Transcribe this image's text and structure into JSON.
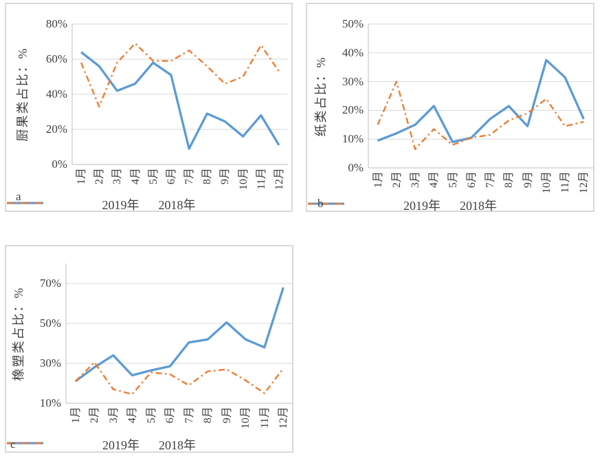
{
  "figure": {
    "background": "#FFFFFF"
  },
  "styles": {
    "series_2019_color": "#5B9BD5",
    "series_2018_color": "#ED7D31",
    "gridline_color": "#D9D9D9",
    "axis_color": "#BFBFBF",
    "text_color": "#404040",
    "panel_border_color": "#D9D9D9"
  },
  "legend": {
    "item_2019": "2019年",
    "item_2018": "2018年"
  },
  "months": [
    "1月",
    "2月",
    "3月",
    "4月",
    "5月",
    "6月",
    "7月",
    "8月",
    "9月",
    "10月",
    "11月",
    "12月"
  ],
  "chart_data": [
    {
      "id": "a",
      "panel_letter": "a",
      "type": "line",
      "y_axis_title": "厨果类占比：%",
      "categories": [
        "1月",
        "2月",
        "3月",
        "4月",
        "5月",
        "6月",
        "7月",
        "8月",
        "9月",
        "10月",
        "11月",
        "12月"
      ],
      "ylim": [
        0,
        80
      ],
      "yticks": [
        0,
        20,
        40,
        60,
        80
      ],
      "ytick_labels": [
        "0%",
        "20%",
        "40%",
        "60%",
        "80%"
      ],
      "grid": true,
      "legend_position": "bottom",
      "series": [
        {
          "name": "2019年",
          "line_style": "solid",
          "color": "#5B9BD5",
          "values": [
            64,
            56,
            42,
            46,
            58,
            51,
            9,
            29,
            24.5,
            16,
            28,
            11
          ]
        },
        {
          "name": "2018年",
          "line_style": "dash-dot",
          "color": "#ED7D31",
          "values": [
            58,
            33,
            58,
            69,
            59,
            59,
            65,
            56,
            46,
            50,
            68,
            53
          ]
        }
      ]
    },
    {
      "id": "b",
      "panel_letter": "b",
      "type": "line",
      "y_axis_title": "纸类占比：%",
      "categories": [
        "1月",
        "2月",
        "3月",
        "4月",
        "5月",
        "6月",
        "7月",
        "8月",
        "9月",
        "10月",
        "11月",
        "12月"
      ],
      "ylim": [
        0,
        50
      ],
      "yticks": [
        0,
        10,
        20,
        30,
        40,
        50
      ],
      "ytick_labels": [
        "0%",
        "10%",
        "20%",
        "30%",
        "40%",
        "50%"
      ],
      "grid": true,
      "legend_position": "bottom",
      "series": [
        {
          "name": "2019年",
          "line_style": "solid",
          "color": "#5B9BD5",
          "values": [
            9.5,
            12,
            15,
            21.5,
            9,
            10.5,
            17,
            21.5,
            14.5,
            37.5,
            31.5,
            17
          ]
        },
        {
          "name": "2018年",
          "line_style": "dash-dot",
          "color": "#ED7D31",
          "values": [
            15,
            30,
            6.5,
            13.5,
            8,
            10.5,
            11.5,
            16.5,
            19,
            24,
            14.5,
            16
          ]
        }
      ]
    },
    {
      "id": "c",
      "panel_letter": "c",
      "type": "line",
      "y_axis_title": "橡塑类占比：%",
      "categories": [
        "1月",
        "2月",
        "3月",
        "4月",
        "5月",
        "6月",
        "7月",
        "8月",
        "9月",
        "10月",
        "11月",
        "12月"
      ],
      "ylim": [
        10,
        80
      ],
      "yticks": [
        10,
        30,
        50,
        70
      ],
      "ytick_labels": [
        "10%",
        "30%",
        "50%",
        "70%"
      ],
      "grid": true,
      "legend_position": "bottom",
      "series": [
        {
          "name": "2019年",
          "line_style": "solid",
          "color": "#5B9BD5",
          "values": [
            21,
            28,
            34,
            24,
            26.5,
            28.5,
            40.5,
            42,
            50.5,
            42,
            38,
            68
          ]
        },
        {
          "name": "2018年",
          "line_style": "dash-dot",
          "color": "#ED7D31",
          "values": [
            21,
            30.5,
            17,
            14.5,
            25.5,
            24.5,
            19,
            26,
            27,
            21.5,
            15,
            27.5
          ]
        }
      ]
    }
  ]
}
